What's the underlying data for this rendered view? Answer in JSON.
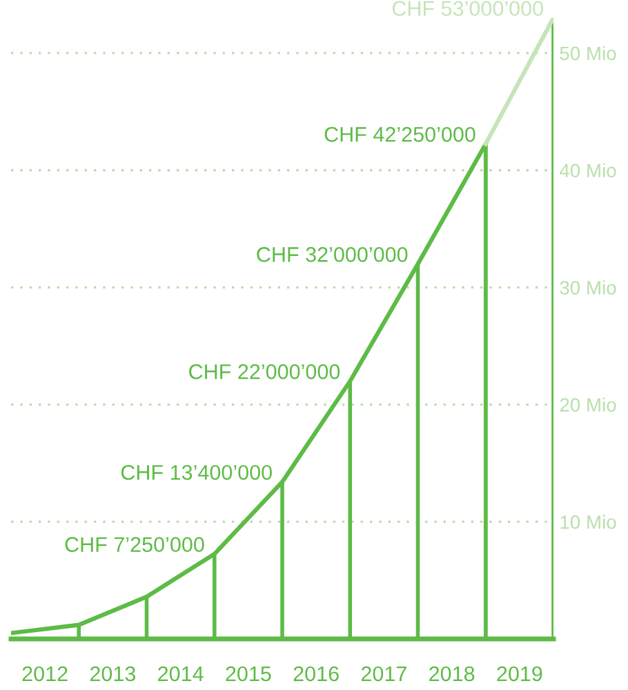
{
  "chart_data": {
    "type": "line",
    "x": [
      2012,
      2013,
      2014,
      2015,
      2016,
      2017,
      2018,
      2019
    ],
    "series": [
      {
        "color": "#5dbb46",
        "values": [
          0.5,
          1.2,
          3.6,
          7.25,
          13.4,
          22,
          32,
          42.25
        ],
        "value_labels": [
          null,
          null,
          null,
          "CHF 7’250’000",
          "CHF 13’400’000",
          "CHF 22’000’000",
          "CHF 32’000’000",
          "CHF 42’250’000"
        ]
      },
      {
        "color": "#c6e4b9",
        "x": [
          2019,
          2020
        ],
        "values": [
          42.25,
          53
        ],
        "value_labels": [
          null,
          "CHF 53’000’000"
        ]
      }
    ],
    "xlim": [
      2012,
      2020
    ],
    "xticks": [
      {
        "value": 2012.5,
        "label": "2012"
      },
      {
        "value": 2013.5,
        "label": "2013"
      },
      {
        "value": 2014.5,
        "label": "2014"
      },
      {
        "value": 2015.5,
        "label": "2015"
      },
      {
        "value": 2016.5,
        "label": "2016"
      },
      {
        "value": 2017.5,
        "label": "2017"
      },
      {
        "value": 2018.5,
        "label": "2018"
      },
      {
        "value": 2019.5,
        "label": "2019"
      }
    ],
    "ylim": [
      0,
      53
    ],
    "yticks": [
      {
        "value": 10,
        "label": "10 Mio"
      },
      {
        "value": 20,
        "label": "20 Mio"
      },
      {
        "value": 30,
        "label": "30 Mio"
      },
      {
        "value": 40,
        "label": "40 Mio"
      },
      {
        "value": 50,
        "label": "50 Mio"
      }
    ],
    "grid": "y",
    "line_style": "solid",
    "marker": "none",
    "legend": false
  }
}
